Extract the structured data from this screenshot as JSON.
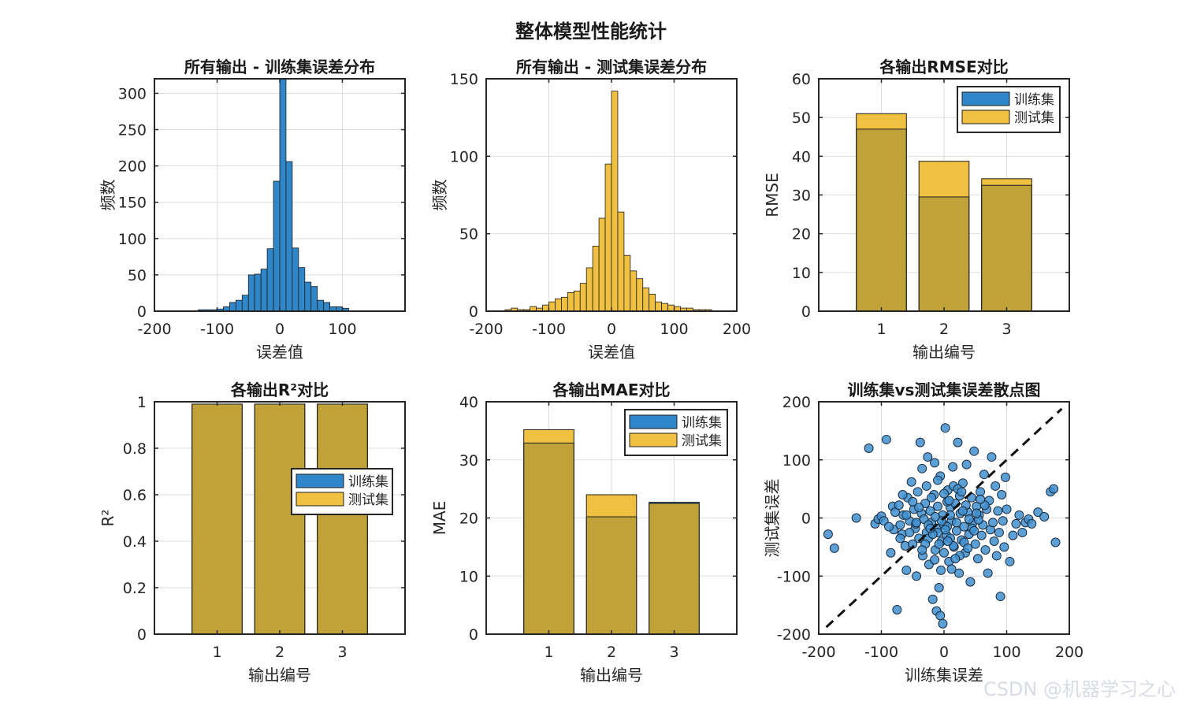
{
  "figure": {
    "suptitle": "整体模型性能统计"
  },
  "watermark": {
    "text": "CSDN @机器学习之心"
  },
  "colors": {
    "train": "#2f86c8",
    "test": "#f0c040",
    "overlap": "#c0a238",
    "edge": "#1e1e1e",
    "grid": "#dedede",
    "axis": "#262626"
  },
  "chart_data": [
    {
      "type": "bar",
      "subtype": "histogram",
      "title": "所有输出 - 训练集误差分布",
      "xlabel": "误差值",
      "ylabel": "频数",
      "xlim": [
        -200,
        200
      ],
      "ylim": [
        0,
        320
      ],
      "xticks": [
        -200,
        -100,
        0,
        100
      ],
      "yticks": [
        0,
        50,
        100,
        150,
        200,
        250,
        300
      ],
      "grid": true,
      "bin_width": 10,
      "bin_edges": [
        -100,
        -90,
        -80,
        -70,
        -60,
        -50,
        -40,
        -30,
        -20,
        -10,
        0,
        10,
        20,
        30,
        40,
        50,
        60,
        70,
        80,
        90,
        100,
        110
      ],
      "series": [
        {
          "name": "训练集",
          "color": "#2f86c8",
          "values": [
            3,
            6,
            12,
            15,
            22,
            50,
            51,
            58,
            86,
            179,
            320,
            206,
            87,
            60,
            40,
            34,
            15,
            12,
            6,
            6,
            4
          ]
        }
      ],
      "extra_bins": [
        {
          "x0": -130,
          "x1": -100,
          "value": 2
        }
      ]
    },
    {
      "type": "bar",
      "subtype": "histogram",
      "title": "所有输出 - 测试集误差分布",
      "xlabel": "误差值",
      "ylabel": "频数",
      "xlim": [
        -200,
        200
      ],
      "ylim": [
        0,
        150
      ],
      "xticks": [
        -200,
        -100,
        0,
        100,
        200
      ],
      "yticks": [
        0,
        50,
        100,
        150
      ],
      "grid": true,
      "bin_edges": [
        -170,
        -160,
        -150,
        -140,
        -130,
        -120,
        -110,
        -100,
        -90,
        -80,
        -70,
        -60,
        -50,
        -40,
        -30,
        -20,
        -10,
        0,
        10,
        20,
        30,
        40,
        50,
        60,
        70,
        80,
        90,
        100,
        110,
        120,
        130,
        140,
        150,
        160
      ],
      "series": [
        {
          "name": "测试集",
          "color": "#f0c040",
          "values": [
            1,
            2,
            1,
            1,
            3,
            2,
            4,
            6,
            8,
            9,
            12,
            13,
            18,
            28,
            42,
            60,
            95,
            142,
            64,
            36,
            26,
            21,
            15,
            11,
            6,
            5,
            4,
            3,
            2,
            2,
            1,
            1,
            1
          ]
        }
      ]
    },
    {
      "type": "bar",
      "title": "各输出RMSE对比",
      "xlabel": "输出编号",
      "ylabel": "RMSE",
      "categories": [
        "1",
        "2",
        "3"
      ],
      "ylim": [
        0,
        60
      ],
      "yticks": [
        0,
        10,
        20,
        30,
        40,
        50,
        60
      ],
      "grid": true,
      "legend_position": "top-right",
      "series": [
        {
          "name": "训练集",
          "values": [
            47.0,
            29.5,
            32.5
          ]
        },
        {
          "name": "测试集",
          "values": [
            51.0,
            38.7,
            34.2
          ]
        }
      ]
    },
    {
      "type": "bar",
      "title": "各输出R²对比",
      "xlabel": "输出编号",
      "ylabel": "R²",
      "categories": [
        "1",
        "2",
        "3"
      ],
      "ylim": [
        0,
        1
      ],
      "yticks": [
        0,
        0.2,
        0.4,
        0.6,
        0.8,
        1
      ],
      "grid": true,
      "legend_position": "right",
      "series": [
        {
          "name": "训练集",
          "values": [
            0.99,
            0.99,
            0.99
          ]
        },
        {
          "name": "测试集",
          "values": [
            0.99,
            0.99,
            0.99
          ]
        }
      ]
    },
    {
      "type": "bar",
      "title": "各输出MAE对比",
      "xlabel": "输出编号",
      "ylabel": "MAE",
      "categories": [
        "1",
        "2",
        "3"
      ],
      "ylim": [
        0,
        40
      ],
      "yticks": [
        0,
        10,
        20,
        30,
        40
      ],
      "grid": true,
      "legend_position": "top-right",
      "series": [
        {
          "name": "训练集",
          "values": [
            32.9,
            20.2,
            22.7
          ]
        },
        {
          "name": "测试集",
          "values": [
            35.2,
            24.0,
            22.5
          ]
        }
      ]
    },
    {
      "type": "scatter",
      "title": "训练集vs测试集误差散点图",
      "xlabel": "训练集误差",
      "ylabel": "测试集误差",
      "xlim": [
        -200,
        200
      ],
      "ylim": [
        -200,
        200
      ],
      "xticks": [
        -200,
        -100,
        0,
        100,
        200
      ],
      "yticks": [
        -200,
        -100,
        0,
        100,
        200
      ],
      "grid": true,
      "reference_line": "y = x (dashed)",
      "points": [
        [
          -185,
          -28
        ],
        [
          -175,
          -52
        ],
        [
          -140,
          0
        ],
        [
          -120,
          120
        ],
        [
          -110,
          -10
        ],
        [
          -105,
          -2
        ],
        [
          -100,
          3
        ],
        [
          -96,
          -5
        ],
        [
          -92,
          135
        ],
        [
          -85,
          -60
        ],
        [
          -82,
          20
        ],
        [
          -80,
          -20
        ],
        [
          -78,
          10
        ],
        [
          -75,
          -158
        ],
        [
          -72,
          22
        ],
        [
          -70,
          -12
        ],
        [
          -67,
          -28
        ],
        [
          -65,
          5
        ],
        [
          -62,
          -48
        ],
        [
          -60,
          -90
        ],
        [
          -58,
          35
        ],
        [
          -55,
          -5
        ],
        [
          -52,
          62
        ],
        [
          -50,
          -45
        ],
        [
          -48,
          15
        ],
        [
          -46,
          -18
        ],
        [
          -44,
          -100
        ],
        [
          -42,
          45
        ],
        [
          -40,
          -35
        ],
        [
          -38,
          130
        ],
        [
          -36,
          8
        ],
        [
          -34,
          -65
        ],
        [
          -32,
          -2
        ],
        [
          -30,
          25
        ],
        [
          -28,
          -25
        ],
        [
          -26,
          105
        ],
        [
          -24,
          -80
        ],
        [
          -22,
          12
        ],
        [
          -20,
          -8
        ],
        [
          -18,
          -140
        ],
        [
          -16,
          40
        ],
        [
          -14,
          -55
        ],
        [
          -12,
          -18
        ],
        [
          -10,
          20
        ],
        [
          -8,
          -120
        ],
        [
          -6,
          72
        ],
        [
          -4,
          -40
        ],
        [
          -2,
          5
        ],
        [
          0,
          -12
        ],
        [
          2,
          155
        ],
        [
          4,
          -30
        ],
        [
          6,
          48
        ],
        [
          8,
          -75
        ],
        [
          10,
          18
        ],
        [
          12,
          -5
        ],
        [
          14,
          88
        ],
        [
          16,
          -50
        ],
        [
          18,
          25
        ],
        [
          20,
          -22
        ],
        [
          22,
          130
        ],
        [
          24,
          -95
        ],
        [
          26,
          8
        ],
        [
          28,
          -38
        ],
        [
          30,
          60
        ],
        [
          32,
          -15
        ],
        [
          34,
          -60
        ],
        [
          36,
          92
        ],
        [
          38,
          10
        ],
        [
          40,
          -28
        ],
        [
          42,
          -110
        ],
        [
          44,
          35
        ],
        [
          46,
          -8
        ],
        [
          48,
          115
        ],
        [
          50,
          -45
        ],
        [
          52,
          20
        ],
        [
          54,
          -70
        ],
        [
          56,
          5
        ],
        [
          58,
          45
        ],
        [
          60,
          -30
        ],
        [
          62,
          -12
        ],
        [
          64,
          75
        ],
        [
          66,
          -55
        ],
        [
          68,
          15
        ],
        [
          70,
          -95
        ],
        [
          72,
          30
        ],
        [
          74,
          -20
        ],
        [
          76,
          105
        ],
        [
          78,
          -8
        ],
        [
          80,
          -40
        ],
        [
          82,
          55
        ],
        [
          84,
          -65
        ],
        [
          86,
          12
        ],
        [
          88,
          -25
        ],
        [
          90,
          -135
        ],
        [
          92,
          40
        ],
        [
          94,
          -5
        ],
        [
          96,
          -50
        ],
        [
          98,
          70
        ],
        [
          100,
          15
        ],
        [
          105,
          -75
        ],
        [
          110,
          -30
        ],
        [
          115,
          -10
        ],
        [
          120,
          5
        ],
        [
          125,
          -25
        ],
        [
          130,
          -8
        ],
        [
          135,
          -2
        ],
        [
          140,
          -10
        ],
        [
          150,
          10
        ],
        [
          160,
          2
        ],
        [
          170,
          45
        ],
        [
          175,
          50
        ],
        [
          178,
          -42
        ],
        [
          -35,
          85
        ],
        [
          -25,
          -35
        ],
        [
          -15,
          95
        ],
        [
          -5,
          -90
        ],
        [
          5,
          -15
        ],
        [
          15,
          55
        ],
        [
          25,
          -65
        ],
        [
          35,
          22
        ],
        [
          -60,
          5
        ],
        [
          -45,
          -10
        ],
        [
          -30,
          -45
        ],
        [
          -20,
          35
        ],
        [
          -10,
          -25
        ],
        [
          0,
          42
        ],
        [
          10,
          -35
        ],
        [
          20,
          -8
        ],
        [
          30,
          12
        ],
        [
          40,
          -2
        ],
        [
          -55,
          -25
        ],
        [
          -40,
          18
        ],
        [
          -25,
          -12
        ],
        [
          -10,
          65
        ],
        [
          5,
          28
        ],
        [
          15,
          -48
        ],
        [
          25,
          38
        ],
        [
          45,
          -18
        ],
        [
          55,
          -3
        ],
        [
          65,
          22
        ],
        [
          -70,
          -35
        ],
        [
          -50,
          28
        ],
        [
          -35,
          -55
        ],
        [
          -15,
          -72
        ],
        [
          0,
          -60
        ],
        [
          12,
          -88
        ],
        [
          22,
          50
        ],
        [
          32,
          -42
        ],
        [
          48,
          -22
        ],
        [
          58,
          32
        ],
        [
          -88,
          -15
        ],
        [
          -66,
          40
        ],
        [
          -44,
          -8
        ],
        [
          -28,
          55
        ],
        [
          -8,
          -45
        ],
        [
          8,
          30
        ],
        [
          18,
          -70
        ],
        [
          28,
          45
        ],
        [
          38,
          -52
        ],
        [
          52,
          8
        ],
        [
          -12,
          -160
        ],
        [
          -6,
          -168
        ],
        [
          -2,
          -182
        ],
        [
          6,
          -40
        ],
        [
          -18,
          -28
        ],
        [
          -4,
          -5
        ],
        [
          2,
          -20
        ],
        [
          10,
          5
        ],
        [
          -14,
          2
        ],
        [
          -22,
          -18
        ]
      ]
    }
  ]
}
